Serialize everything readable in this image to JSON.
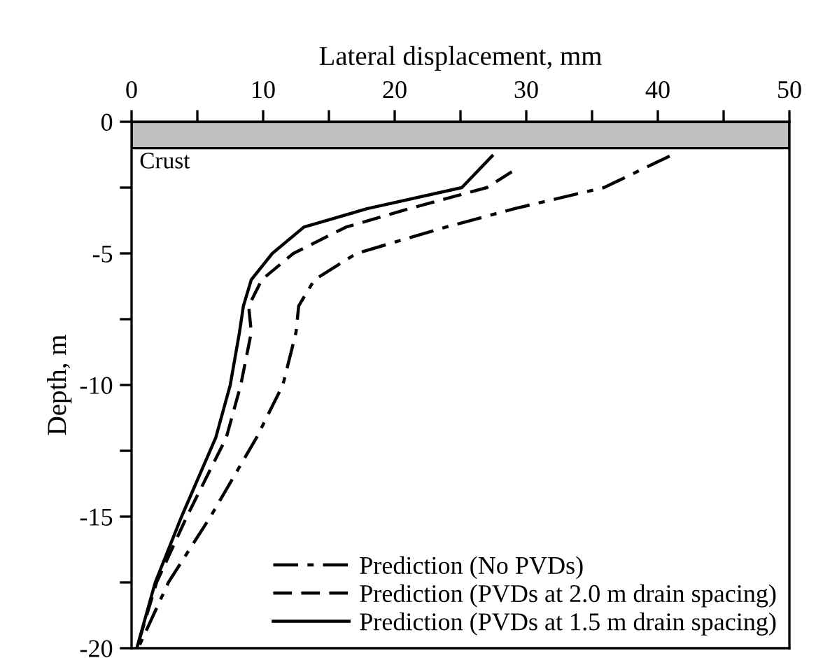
{
  "chart_data": {
    "type": "line",
    "xlabel": "Lateral displacement, mm",
    "ylabel": "Depth, m",
    "xlim": [
      0,
      50
    ],
    "ylim": [
      -20,
      0
    ],
    "xticks": [
      0,
      {
        "value": 5,
        "label": null
      },
      10,
      {
        "value": 15,
        "label": null
      },
      20,
      {
        "value": 25,
        "label": null
      },
      30,
      {
        "value": 35,
        "label": null
      },
      40,
      {
        "value": 45,
        "label": null
      },
      50
    ],
    "yticks": [
      0,
      {
        "value": -2.5,
        "label": null
      },
      -5,
      {
        "value": -7.5,
        "label": null
      },
      -10,
      {
        "value": -12.5,
        "label": null
      },
      -15,
      {
        "value": -17.5,
        "label": null
      },
      -20
    ],
    "bands": [
      {
        "axis": "y",
        "from": -1,
        "to": 0,
        "label": "Crust",
        "color": "#c0c0c0"
      }
    ],
    "series": [
      {
        "name": "Prediction (No PVDs)",
        "color": "#000000",
        "line_style": "dashdot",
        "x": [
          40.9,
          35.9,
          29.1,
          23.9,
          17.1,
          13.9,
          12.7,
          12.5,
          11.5,
          9.5,
          6.0,
          2.8,
          0.5
        ],
        "values": [
          -1.3,
          -2.5,
          -3.3,
          -4,
          -5,
          -6,
          -7,
          -8,
          -10,
          -12,
          -15,
          -17.5,
          -20
        ]
      },
      {
        "name": "Prediction (PVDs at 2.0 m drain spacing)",
        "color": "#000000",
        "line_style": "dashed",
        "x": [
          28.9,
          27.0,
          21.1,
          16.3,
          12.3,
          9.9,
          8.9,
          9.1,
          8.3,
          7.2,
          4.2,
          1.9,
          0.4
        ],
        "values": [
          -1.9,
          -2.5,
          -3.3,
          -4,
          -5,
          -6,
          -7,
          -8,
          -10,
          -12,
          -15,
          -17.5,
          -20
        ]
      },
      {
        "name": "Prediction (PVDs at 1.5 m drain spacing)",
        "color": "#000000",
        "line_style": "solid",
        "x": [
          27.4,
          25.1,
          17.9,
          13.1,
          10.7,
          9.1,
          8.5,
          8.2,
          7.5,
          6.4,
          3.8,
          1.8,
          0.4
        ],
        "values": [
          -1.3,
          -2.5,
          -3.3,
          -4,
          -5,
          -6,
          -7,
          -8,
          -10,
          -12,
          -15,
          -17.5,
          -20
        ]
      }
    ],
    "legend": "bottom right",
    "grid": false,
    "marker": "none"
  }
}
